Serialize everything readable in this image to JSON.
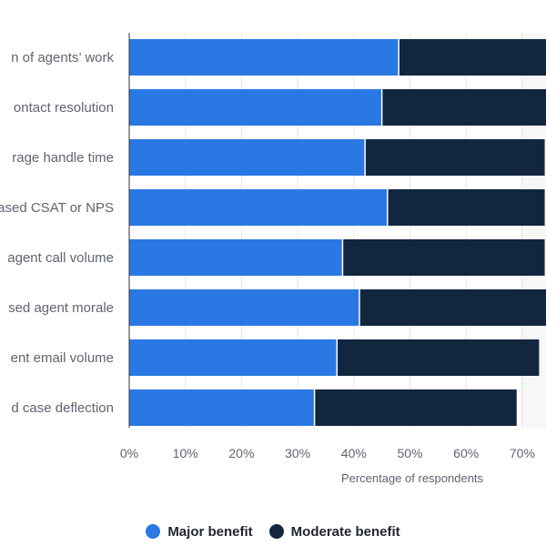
{
  "chart_data": {
    "type": "bar",
    "orientation": "horizontal",
    "stacked": true,
    "categories": [
      "n of agents’ work",
      "ontact resolution",
      "rage handle time",
      "ased CSAT or NPS",
      "agent call volume",
      "sed agent morale",
      "ent email volume",
      "d case deflection"
    ],
    "series": [
      {
        "name": "Major benefit",
        "color": "#2a78e3",
        "values": [
          48,
          45,
          42,
          46,
          38,
          41,
          37,
          33
        ]
      },
      {
        "name": "Moderate benefit",
        "color": "#12263f",
        "values": [
          27,
          30,
          32,
          28,
          36,
          34,
          36,
          36
        ]
      }
    ],
    "xlabel": "Percentage of respondents",
    "ylabel": "",
    "x_ticks": [
      "0%",
      "10%",
      "20%",
      "30%",
      "40%",
      "50%",
      "60%",
      "70%"
    ],
    "xlim": [
      0,
      75
    ],
    "grid": true,
    "legend_position": "bottom"
  }
}
